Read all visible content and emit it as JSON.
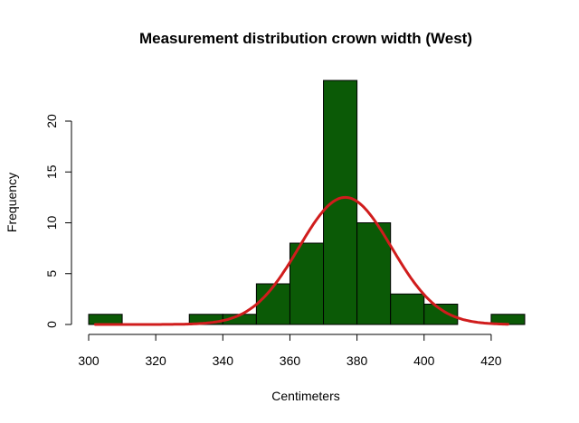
{
  "chart_data": {
    "type": "bar",
    "subtype": "histogram",
    "title": "Measurement distribution crown width (West)",
    "xlabel": "Centimeters",
    "ylabel": "Frequency",
    "xlim": [
      300,
      430
    ],
    "ylim": [
      0,
      24
    ],
    "x_ticks": [
      300,
      320,
      340,
      360,
      380,
      400,
      420
    ],
    "y_ticks": [
      0,
      5,
      10,
      15,
      20
    ],
    "bins": [
      {
        "start": 300,
        "end": 310,
        "count": 1
      },
      {
        "start": 310,
        "end": 320,
        "count": 0
      },
      {
        "start": 320,
        "end": 330,
        "count": 0
      },
      {
        "start": 330,
        "end": 340,
        "count": 1
      },
      {
        "start": 340,
        "end": 350,
        "count": 1
      },
      {
        "start": 350,
        "end": 360,
        "count": 4
      },
      {
        "start": 360,
        "end": 370,
        "count": 8
      },
      {
        "start": 370,
        "end": 380,
        "count": 24
      },
      {
        "start": 380,
        "end": 390,
        "count": 10
      },
      {
        "start": 390,
        "end": 400,
        "count": 3
      },
      {
        "start": 400,
        "end": 410,
        "count": 2
      },
      {
        "start": 410,
        "end": 420,
        "count": 0
      },
      {
        "start": 420,
        "end": 430,
        "count": 1
      }
    ],
    "overlay_curve": {
      "type": "normal-density",
      "mean": 376.5,
      "sd": 13.8,
      "peak": 12.5,
      "x_range": [
        302,
        425
      ],
      "color": "#d01c1c"
    },
    "bar_color": "#0b5a06",
    "grid": false
  }
}
